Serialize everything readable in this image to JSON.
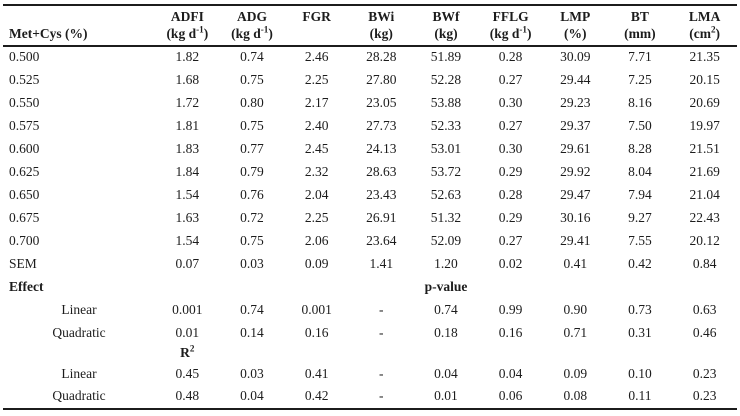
{
  "table": {
    "columns": [
      {
        "name": "",
        "unit": "Met+Cys (%)"
      },
      {
        "name": "ADFI",
        "unit": "(kg d^-1^)"
      },
      {
        "name": "ADG",
        "unit": "(kg d^-1^)"
      },
      {
        "name": "FGR",
        "unit": ""
      },
      {
        "name": "BWi",
        "unit": "(kg)"
      },
      {
        "name": "BWf",
        "unit": "(kg)"
      },
      {
        "name": "FFLG",
        "unit": "(kg d^-1^)"
      },
      {
        "name": "LMP",
        "unit": "(%)"
      },
      {
        "name": "BT",
        "unit": "(mm)"
      },
      {
        "name": "LMA",
        "unit": "(cm^2^)"
      }
    ],
    "rows": [
      {
        "label": "0.500",
        "kind": "data",
        "values": [
          "1.82",
          "0.74",
          "2.46",
          "28.28",
          "51.89",
          "0.28",
          "30.09",
          "7.71",
          "21.35"
        ]
      },
      {
        "label": "0.525",
        "kind": "data",
        "values": [
          "1.68",
          "0.75",
          "2.25",
          "27.80",
          "52.28",
          "0.27",
          "29.44",
          "7.25",
          "20.15"
        ]
      },
      {
        "label": "0.550",
        "kind": "data",
        "values": [
          "1.72",
          "0.80",
          "2.17",
          "23.05",
          "53.88",
          "0.30",
          "29.23",
          "8.16",
          "20.69"
        ]
      },
      {
        "label": "0.575",
        "kind": "data",
        "values": [
          "1.81",
          "0.75",
          "2.40",
          "27.73",
          "52.33",
          "0.27",
          "29.37",
          "7.50",
          "19.97"
        ]
      },
      {
        "label": "0.600",
        "kind": "data",
        "values": [
          "1.83",
          "0.77",
          "2.45",
          "24.13",
          "53.01",
          "0.30",
          "29.61",
          "8.28",
          "21.51"
        ]
      },
      {
        "label": "0.625",
        "kind": "data",
        "values": [
          "1.84",
          "0.79",
          "2.32",
          "28.63",
          "53.72",
          "0.29",
          "29.92",
          "8.04",
          "21.69"
        ]
      },
      {
        "label": "0.650",
        "kind": "data",
        "values": [
          "1.54",
          "0.76",
          "2.04",
          "23.43",
          "52.63",
          "0.28",
          "29.47",
          "7.94",
          "21.04"
        ]
      },
      {
        "label": "0.675",
        "kind": "data",
        "values": [
          "1.63",
          "0.72",
          "2.25",
          "26.91",
          "51.32",
          "0.29",
          "30.16",
          "9.27",
          "22.43"
        ]
      },
      {
        "label": "0.700",
        "kind": "data",
        "values": [
          "1.54",
          "0.75",
          "2.06",
          "23.64",
          "52.09",
          "0.27",
          "29.41",
          "7.55",
          "20.12"
        ]
      },
      {
        "label": "SEM",
        "kind": "data",
        "values": [
          "0.07",
          "0.03",
          "0.09",
          "1.41",
          "1.20",
          "0.02",
          "0.41",
          "0.42",
          "0.84"
        ]
      },
      {
        "label": "Effect",
        "kind": "section",
        "values": [
          "",
          "",
          "",
          "",
          "p-value",
          "",
          "",
          "",
          ""
        ]
      },
      {
        "label": "Linear",
        "kind": "sub",
        "values": [
          "0.001",
          "0.74",
          "0.001",
          "-",
          "0.74",
          "0.99",
          "0.90",
          "0.73",
          "0.63"
        ]
      },
      {
        "label": "Quadratic",
        "kind": "sub",
        "values": [
          "0.01",
          "0.14",
          "0.16",
          "-",
          "0.18",
          "0.16",
          "0.71",
          "0.31",
          "0.46"
        ]
      },
      {
        "label": "",
        "kind": "section",
        "values": [
          "R^2^",
          "",
          "",
          "",
          "",
          "",
          "",
          "",
          ""
        ]
      },
      {
        "label": "Linear",
        "kind": "sub",
        "values": [
          "0.45",
          "0.03",
          "0.41",
          "-",
          "0.04",
          "0.04",
          "0.09",
          "0.10",
          "0.23"
        ]
      },
      {
        "label": "Quadratic",
        "kind": "sub",
        "values": [
          "0.48",
          "0.04",
          "0.42",
          "-",
          "0.01",
          "0.06",
          "0.08",
          "0.11",
          "0.23"
        ]
      }
    ]
  }
}
